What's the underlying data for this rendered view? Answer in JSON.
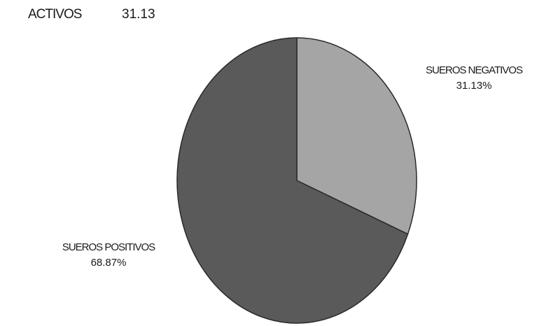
{
  "header": {
    "label": "ACTIVOS",
    "value": "31.13"
  },
  "chart_data": {
    "type": "pie",
    "title": "",
    "slices": [
      {
        "name": "SUEROS NEGATIVOS",
        "value": 31.13,
        "label": "31.13%",
        "color": "#a5a5a5"
      },
      {
        "name": "SUEROS POSITIVOS",
        "value": 68.87,
        "label": "68.87%",
        "color": "#5a5a5a"
      }
    ],
    "start_angle_deg": 0,
    "direction": "clockwise",
    "edge_color": "#2a2a2a"
  }
}
